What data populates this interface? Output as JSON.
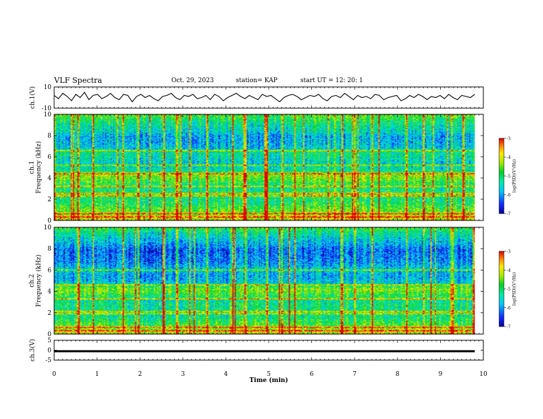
{
  "header": {
    "title": "VLF Spectra",
    "date": "Oct. 29, 2023",
    "station": "station= KAP",
    "start": "start  UT  =   12: 20:  1"
  },
  "chart_data": [
    {
      "type": "line",
      "panel": "ch1-waveform",
      "ylabel": "ch.1(V)",
      "ylim": [
        -10,
        10
      ],
      "yticks": [
        10,
        -10
      ],
      "xlim": [
        0,
        10
      ],
      "x_end": 9.8,
      "color": "#000000",
      "values": [
        2,
        -1,
        4,
        1,
        -3,
        3,
        0,
        5,
        -2,
        2,
        3,
        -1,
        1,
        4,
        0,
        -2,
        3,
        2,
        -4,
        1,
        3,
        0,
        2,
        -1,
        -3,
        1,
        2,
        4,
        0,
        -2,
        2,
        1,
        3,
        -1,
        0,
        2,
        -2,
        3,
        1,
        -3,
        0,
        2,
        4,
        1,
        -1,
        2,
        0,
        -2,
        3,
        1,
        2,
        -1,
        -4,
        0,
        2,
        3,
        1,
        -2,
        0,
        2,
        1,
        3,
        -1,
        -3,
        1,
        2,
        0,
        4,
        1,
        -2,
        2,
        0,
        1,
        -1,
        3,
        2,
        -2,
        0,
        1,
        2,
        -3,
        -1,
        2,
        0,
        3,
        1,
        -2,
        1,
        0,
        2,
        -1,
        3,
        0,
        -2,
        2,
        1,
        0,
        3
      ]
    },
    {
      "type": "heatmap",
      "panel": "ch1-spectrogram",
      "ylabel": "ch.1",
      "ylabel2": "Frequency (kHz)",
      "ylim": [
        0,
        10
      ],
      "yticks": [
        0,
        2,
        4,
        6,
        8,
        10
      ],
      "xlim": [
        0,
        9.8
      ],
      "colorbar": {
        "label": "log(PSD)(V²/Hz)",
        "range": [
          -7,
          -3
        ],
        "ticks": [
          "-3",
          "-4",
          "-5",
          "-6",
          "-7"
        ]
      },
      "freq_profile": [
        -4.0,
        -4.4,
        -4.6,
        -5.0,
        -5.1,
        -5.0,
        -5.2,
        -4.7,
        -4.3,
        -5.3,
        -5.6,
        -5.4,
        -5.2,
        -5.7,
        -5.8,
        -5.9,
        -5.5,
        -5.3,
        -5.0,
        -4.6
      ],
      "bright_lines_khz": [
        0.3,
        0.6,
        2.3,
        2.5,
        3.2,
        4.4,
        5.2,
        6.6
      ],
      "burst_times_min": [
        0.55,
        0.9,
        1.6,
        1.95,
        2.55,
        2.85,
        3.15,
        3.55,
        4.15,
        4.45,
        4.95,
        5.3,
        5.6,
        6.7,
        7.0,
        7.4,
        8.2,
        8.6,
        9.25
      ]
    },
    {
      "type": "heatmap",
      "panel": "ch2-spectrogram",
      "ylabel": "ch.2",
      "ylabel2": "Frequency (kHz)",
      "ylim": [
        0,
        10
      ],
      "yticks": [
        0,
        2,
        4,
        6,
        8,
        10
      ],
      "xlim": [
        0,
        9.8
      ],
      "colorbar": {
        "label": "log(PSD)(V²/Hz)",
        "range": [
          -7,
          -3
        ],
        "ticks": [
          "-3",
          "-4",
          "-5",
          "-6",
          "-7"
        ]
      },
      "freq_profile": [
        -4.0,
        -4.5,
        -4.8,
        -5.2,
        -5.3,
        -5.1,
        -5.3,
        -4.8,
        -4.4,
        -5.6,
        -5.9,
        -5.8,
        -5.8,
        -6.1,
        -6.2,
        -6.3,
        -5.9,
        -5.6,
        -5.3,
        -4.8
      ],
      "bright_lines_khz": [
        0.3,
        0.6,
        1.9,
        2.1,
        3.3,
        4.6,
        6.0
      ],
      "burst_times_min": [
        0.55,
        0.9,
        1.6,
        1.95,
        2.55,
        2.85,
        3.15,
        3.55,
        4.15,
        4.45,
        4.95,
        5.3,
        5.6,
        6.7,
        7.0,
        7.4,
        8.2,
        8.6,
        9.25
      ]
    },
    {
      "type": "line",
      "panel": "ch3-waveform",
      "ylabel": "ch.3(V)",
      "ylim": [
        -5,
        5
      ],
      "yticks": [
        5,
        0,
        -5
      ],
      "xlim": [
        0,
        10
      ],
      "x_end": 9.8,
      "level": -0.3,
      "band_halfwidth": 0.3,
      "color": "#000000"
    }
  ],
  "x_axis": {
    "label": "Time  (min)",
    "ticks": [
      "0",
      "1",
      "2",
      "3",
      "4",
      "5",
      "6",
      "7",
      "8",
      "9",
      "10"
    ],
    "range": [
      0,
      10
    ]
  }
}
